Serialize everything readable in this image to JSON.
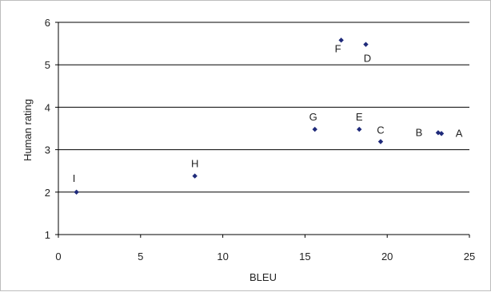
{
  "chart_data": {
    "type": "scatter",
    "title": "",
    "xlabel": "BLEU",
    "ylabel": "Human rating",
    "xlim": [
      0,
      25
    ],
    "ylim": [
      1,
      6
    ],
    "xticks": [
      "0",
      "5",
      "10",
      "15",
      "20",
      "25"
    ],
    "yticks": [
      "1",
      "2",
      "3",
      "4",
      "5",
      "6"
    ],
    "grid": "horizontal",
    "legend": "none",
    "marker_color": "#1f2a7a",
    "points": [
      {
        "label": "A",
        "x": 23.3,
        "y": 3.38
      },
      {
        "label": "B",
        "x": 23.1,
        "y": 3.4
      },
      {
        "label": "C",
        "x": 19.6,
        "y": 3.19
      },
      {
        "label": "D",
        "x": 18.7,
        "y": 5.48
      },
      {
        "label": "E",
        "x": 18.3,
        "y": 3.48
      },
      {
        "label": "F",
        "x": 17.2,
        "y": 5.58
      },
      {
        "label": "G",
        "x": 15.6,
        "y": 3.48
      },
      {
        "label": "H",
        "x": 8.3,
        "y": 2.38
      },
      {
        "label": "I",
        "x": 1.1,
        "y": 2.0
      }
    ]
  }
}
